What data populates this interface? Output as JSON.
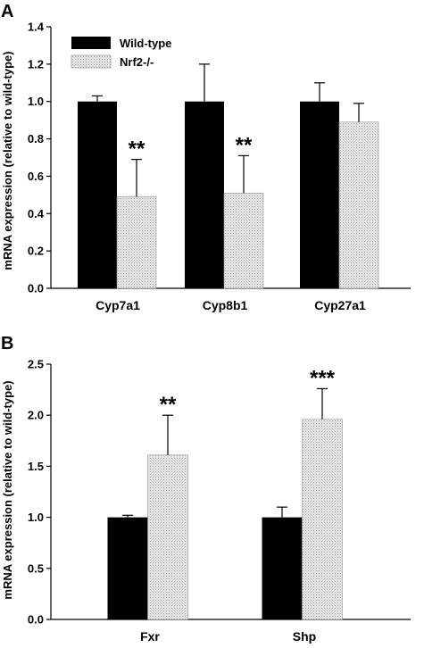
{
  "colors": {
    "wild_type": "#000000",
    "nrf2": "#e4e4e4",
    "axis": "#000000"
  },
  "chart_data": [
    {
      "panel": "A",
      "type": "bar",
      "ylabel": "mRNA expression (relative to wild-type)",
      "ylim": [
        0,
        1.4
      ],
      "yticks": [
        "0.0",
        "0.2",
        "0.4",
        "0.6",
        "0.8",
        "1.0",
        "1.2",
        "1.4"
      ],
      "categories": [
        "Cyp7a1",
        "Cyp8b1",
        "Cyp27a1"
      ],
      "series": [
        {
          "name": "Wild-type",
          "values": [
            1.0,
            1.0,
            1.0
          ],
          "errors": [
            0.03,
            0.2,
            0.1
          ]
        },
        {
          "name": "Nrf2-/-",
          "values": [
            0.49,
            0.51,
            0.89
          ],
          "errors": [
            0.2,
            0.2,
            0.1
          ]
        }
      ],
      "annotations": [
        "**",
        "**",
        ""
      ],
      "legend": "top-left"
    },
    {
      "panel": "B",
      "type": "bar",
      "ylabel": "mRNA expression (relative to wild-type)",
      "ylim": [
        0,
        2.5
      ],
      "yticks": [
        "0.0",
        "0.5",
        "1.0",
        "1.5",
        "2.0",
        "2.5"
      ],
      "categories": [
        "Fxr",
        "Shp"
      ],
      "series": [
        {
          "name": "Wild-type",
          "values": [
            1.0,
            1.0
          ],
          "errors": [
            0.02,
            0.1
          ]
        },
        {
          "name": "Nrf2-/-",
          "values": [
            1.61,
            1.96
          ],
          "errors": [
            0.39,
            0.3
          ]
        }
      ],
      "annotations": [
        "**",
        "***"
      ]
    }
  ]
}
